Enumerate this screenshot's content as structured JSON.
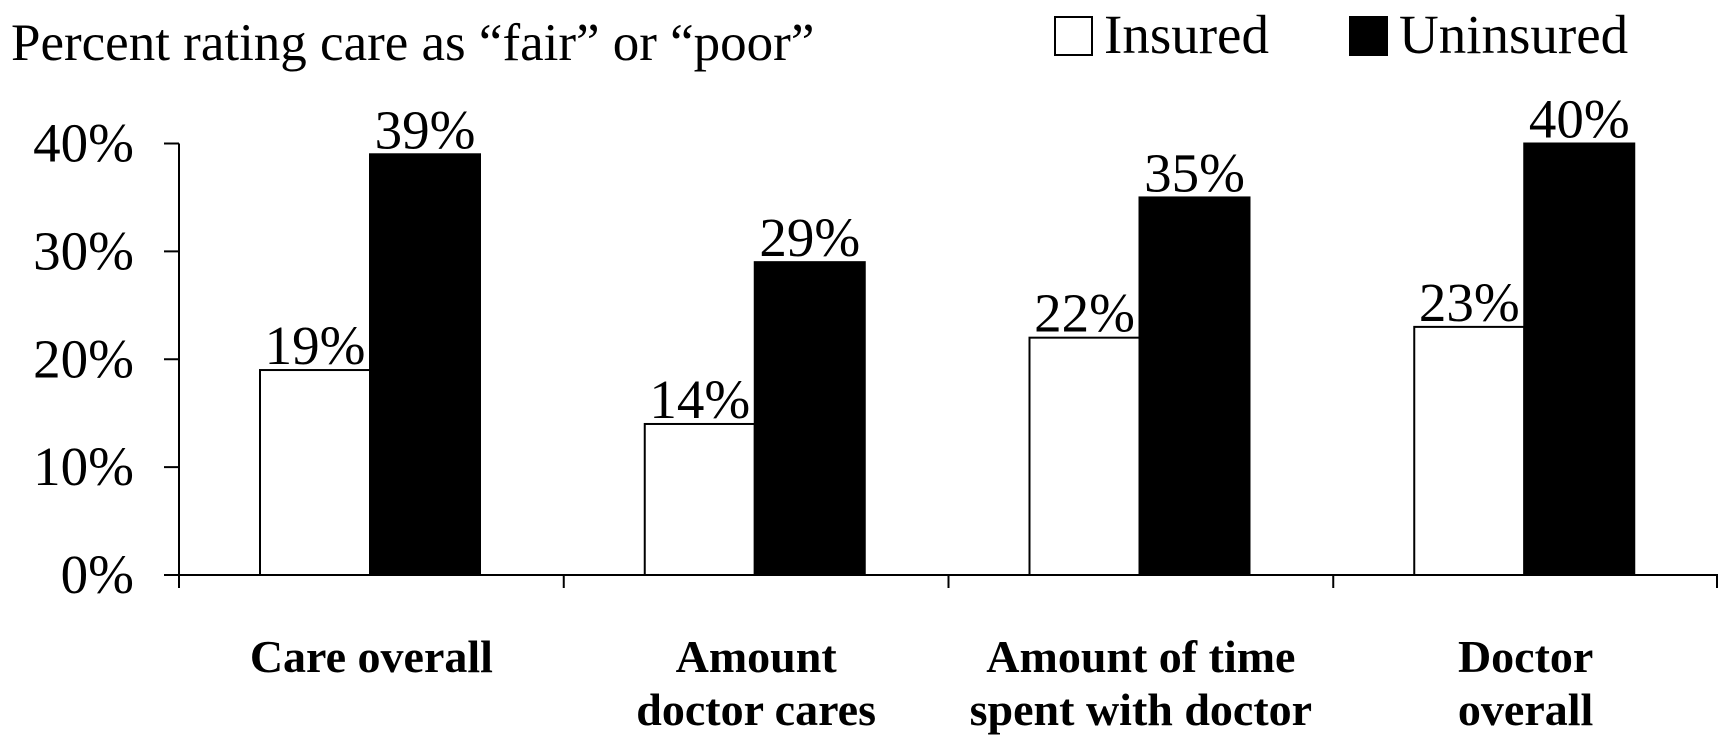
{
  "chart_data": {
    "type": "bar",
    "title": "Percent rating care as “fair” or “poor”",
    "categories": [
      [
        "Care overall"
      ],
      [
        "Amount",
        "doctor cares"
      ],
      [
        "Amount of time",
        "spent with doctor"
      ],
      [
        "Doctor",
        "overall"
      ]
    ],
    "series": [
      {
        "name": "Insured",
        "color": "#ffffff",
        "values": [
          19,
          14,
          22,
          23
        ],
        "value_labels": [
          "19%",
          "14%",
          "22%",
          "23%"
        ]
      },
      {
        "name": "Uninsured",
        "color": "#000000",
        "values": [
          39,
          29,
          35,
          40
        ],
        "value_labels": [
          "39%",
          "29%",
          "35%",
          "40%"
        ]
      }
    ],
    "ylim": [
      0,
      40
    ],
    "yticks": [
      {
        "value": 0,
        "label": "0%"
      },
      {
        "value": 10,
        "label": "10%"
      },
      {
        "value": 20,
        "label": "20%"
      },
      {
        "value": 30,
        "label": "30%"
      },
      {
        "value": 40,
        "label": "40%"
      }
    ],
    "legend": "top-right"
  }
}
